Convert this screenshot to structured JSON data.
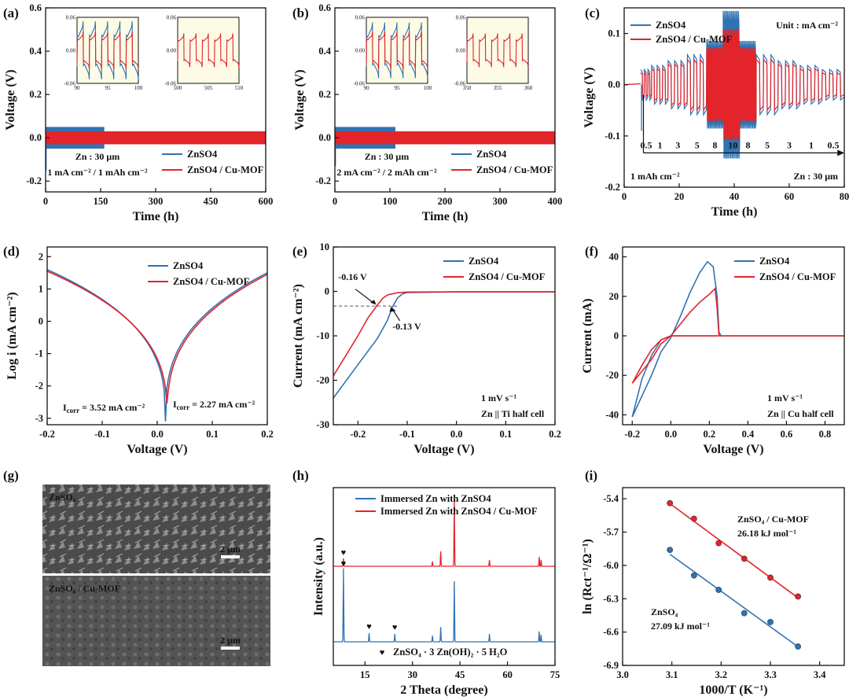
{
  "colors": {
    "blue": "#2f73b3",
    "red": "#e3242b",
    "axis": "#111111",
    "inset_bg": "#fdfbe6",
    "sem_bg": "#555555"
  },
  "chart_data": [
    {
      "id": "a",
      "panel_label": "(a)",
      "type": "line",
      "xlabel": "Time (h)",
      "ylabel": "Voltage (V)",
      "xlim": [
        0,
        600
      ],
      "ylim": [
        -0.25,
        0.6
      ],
      "xticks": [
        0,
        150,
        300,
        450,
        600
      ],
      "yticks": [
        -0.2,
        0.0,
        0.2,
        0.4,
        0.6
      ],
      "ytick_labels": [
        "-0.2",
        "0.0",
        "0.2",
        "0.4",
        "0.6"
      ],
      "legend": [
        "ZnSO4",
        "ZnSO4 / Cu-MOF"
      ],
      "series": [
        {
          "name": "ZnSO4",
          "color": "#2f73b3",
          "x_range": [
            0,
            160
          ],
          "amplitude": [
            0.05,
            0.06
          ],
          "spike": -0.15
        },
        {
          "name": "ZnSO4 / Cu-MOF",
          "color": "#e3242b",
          "x_range": [
            0,
            600
          ],
          "amplitude": [
            0.03,
            0.03
          ]
        }
      ],
      "annotations": [
        "Zn : 30 μm",
        "1 mA cm⁻² / 1 mAh cm⁻²"
      ],
      "insets": [
        {
          "xlim": [
            90,
            100
          ],
          "xticks": [
            90,
            95,
            100
          ],
          "ylim": [
            -0.06,
            0.06
          ],
          "ytick_labels": [
            "-0.06",
            "0.00",
            "0.06"
          ],
          "series": [
            "ZnSO4",
            "ZnSO4 / Cu-MOF"
          ],
          "cycles": 5,
          "amp_red": 0.038,
          "amp_blue": 0.05
        },
        {
          "xlim": [
            500,
            510
          ],
          "xticks": [
            500,
            505,
            510
          ],
          "ylim": [
            -0.06,
            0.06
          ],
          "ytick_labels": [
            "-0.06",
            "0.00",
            "0.06"
          ],
          "series": [
            "ZnSO4 / Cu-MOF"
          ],
          "cycles": 5,
          "amp_red": 0.034
        }
      ]
    },
    {
      "id": "b",
      "panel_label": "(b)",
      "type": "line",
      "xlabel": "Time (h)",
      "ylabel": "Voltage (V)",
      "xlim": [
        0,
        400
      ],
      "ylim": [
        -0.25,
        0.6
      ],
      "xticks": [
        0,
        100,
        200,
        300,
        400
      ],
      "yticks": [
        -0.2,
        0.0,
        0.2,
        0.4,
        0.6
      ],
      "ytick_labels": [
        "-0.2",
        "0.0",
        "0.2",
        "0.4",
        "0.6"
      ],
      "legend": [
        "ZnSO4",
        "ZnSO4 / Cu-MOF"
      ],
      "series": [
        {
          "name": "ZnSO4",
          "color": "#2f73b3",
          "x_range": [
            0,
            110
          ],
          "amplitude": [
            0.05,
            0.04
          ],
          "spike": -0.13
        },
        {
          "name": "ZnSO4 / Cu-MOF",
          "color": "#e3242b",
          "x_range": [
            0,
            400
          ],
          "amplitude": [
            0.03,
            0.03
          ]
        }
      ],
      "annotations": [
        "Zn : 30 μm",
        "2 mA cm⁻² / 2 mAh cm⁻²"
      ],
      "insets": [
        {
          "xlim": [
            90,
            100
          ],
          "xticks": [
            90,
            95,
            100
          ],
          "ylim": [
            -0.06,
            0.06
          ],
          "ytick_labels": [
            "-0.06",
            "0.00",
            "0.06"
          ],
          "series": [
            "ZnSO4",
            "ZnSO4 / Cu-MOF"
          ],
          "cycles": 5,
          "amp_red": 0.038,
          "amp_blue": 0.048
        },
        {
          "xlim": [
            350,
            360
          ],
          "xticks": [
            350,
            355,
            360
          ],
          "ylim": [
            -0.06,
            0.06
          ],
          "ytick_labels": [
            "-0.06",
            "0.00",
            "0.06"
          ],
          "series": [
            "ZnSO4 / Cu-MOF"
          ],
          "cycles": 5,
          "amp_red": 0.034
        }
      ]
    },
    {
      "id": "c",
      "panel_label": "(c)",
      "type": "line",
      "xlabel": "Time (h)",
      "ylabel": "Voltage (V)",
      "xlim": [
        0,
        80
      ],
      "ylim": [
        -0.2,
        0.15
      ],
      "xticks": [
        0,
        20,
        40,
        60,
        80
      ],
      "yticks": [
        -0.2,
        -0.1,
        0.0,
        0.1
      ],
      "ytick_labels": [
        "-0.2",
        "-0.1",
        "0.0",
        "0.1"
      ],
      "legend": [
        "ZnSO4",
        "ZnSO4 / Cu-MOF"
      ],
      "current_steps": [
        "0.5",
        "1",
        "3",
        "5",
        "8",
        "10",
        "8",
        "5",
        "3",
        "1",
        "0.5"
      ],
      "series": [
        {
          "name": "ZnSO4",
          "color": "#2f73b3",
          "peak_voltage": 0.16
        },
        {
          "name": "ZnSO4 / Cu-MOF",
          "color": "#e3242b",
          "peak_voltage": 0.12
        }
      ],
      "annotations": [
        "Unit : mA cm⁻²",
        "1 mAh cm⁻²",
        "Zn : 30 μm"
      ]
    },
    {
      "id": "d",
      "panel_label": "(d)",
      "type": "line",
      "xlabel": "Voltage (V)",
      "ylabel": "Log i (mA cm⁻²)",
      "xlim": [
        -0.2,
        0.2
      ],
      "ylim": [
        -3.2,
        2.3
      ],
      "xticks": [
        -0.2,
        -0.1,
        0.0,
        0.1,
        0.2
      ],
      "yticks": [
        -3,
        -2,
        -1,
        0,
        1,
        2
      ],
      "xtick_labels": [
        "-0.2",
        "-0.1",
        "0.0",
        "0.1",
        "0.2"
      ],
      "ytick_labels": [
        "-3",
        "-2",
        "-1",
        "0",
        "1",
        "2"
      ],
      "legend": [
        "ZnSO4",
        "ZnSO4 / Cu-MOF"
      ],
      "series": [
        {
          "name": "ZnSO4",
          "color": "#2f73b3",
          "x_min": 0.015,
          "left_end": 1.6,
          "right_end": 1.5
        },
        {
          "name": "ZnSO4 / Cu-MOF",
          "color": "#e3242b",
          "x_min": 0.018,
          "left_end": 1.55,
          "right_end": 1.45
        }
      ],
      "annotations": [
        "I",
        "corr",
        " = 3.52 mA cm⁻²",
        "I",
        "corr",
        " = 2.27 mA cm⁻²"
      ]
    },
    {
      "id": "e",
      "panel_label": "(e)",
      "type": "line",
      "xlabel": "Voltage (V)",
      "ylabel": "Current (mA cm⁻²)",
      "xlim": [
        -0.25,
        0.2
      ],
      "ylim": [
        -30,
        10
      ],
      "xticks": [
        -0.2,
        -0.1,
        0.0,
        0.1,
        0.2
      ],
      "yticks": [
        -30,
        -20,
        -10,
        0,
        10
      ],
      "xtick_labels": [
        "-0.2",
        "-0.1",
        "0.0",
        "0.1",
        "0.2"
      ],
      "legend": [
        "ZnSO4",
        "ZnSO4 / Cu-MOF"
      ],
      "series": [
        {
          "name": "ZnSO4",
          "color": "#2f73b3",
          "x": [
            -0.25,
            -0.2,
            -0.16,
            -0.14,
            -0.13,
            -0.12,
            -0.11,
            -0.1,
            0.0,
            0.2
          ],
          "y": [
            -24,
            -16.5,
            -10.5,
            -6.5,
            -3.5,
            -1.5,
            -0.6,
            -0.25,
            -0.1,
            -0.1
          ]
        },
        {
          "name": "ZnSO4 / Cu-MOF",
          "color": "#e3242b",
          "x": [
            -0.25,
            -0.2,
            -0.18,
            -0.16,
            -0.15,
            -0.14,
            -0.12,
            -0.1,
            0.0,
            0.2
          ],
          "y": [
            -19,
            -10,
            -6,
            -3,
            -1.6,
            -0.8,
            -0.3,
            -0.15,
            -0.1,
            -0.1
          ]
        }
      ],
      "annotations": [
        "-0.16 V",
        "-0.13 V",
        "1 mV s⁻¹",
        "Zn || Ti half cell"
      ]
    },
    {
      "id": "f",
      "panel_label": "(f)",
      "type": "line",
      "xlabel": "Voltage (V)",
      "ylabel": "Current (mA)",
      "xlim": [
        -0.25,
        0.9
      ],
      "ylim": [
        -45,
        45
      ],
      "xticks": [
        -0.2,
        0.0,
        0.2,
        0.4,
        0.6,
        0.8
      ],
      "yticks": [
        -40,
        -20,
        0,
        20,
        40
      ],
      "xtick_labels": [
        "-0.2",
        "0.0",
        "0.2",
        "0.4",
        "0.6",
        "0.8"
      ],
      "legend": [
        "ZnSO4",
        "ZnSO4 / Cu-MOF"
      ],
      "series": [
        {
          "name": "ZnSO4",
          "color": "#2f73b3",
          "fwd_x": [
            -0.2,
            -0.1,
            -0.05,
            0.0,
            0.05,
            0.1,
            0.15,
            0.19,
            0.22,
            0.24,
            0.25,
            0.26,
            0.3,
            0.9
          ],
          "fwd_y": [
            -41,
            -20,
            -8,
            -1,
            10,
            22,
            32,
            37.5,
            35,
            20,
            2,
            0,
            0,
            0
          ],
          "rev_x": [
            0.24,
            0.2,
            0.1,
            0.0,
            -0.05,
            -0.1,
            -0.15,
            -0.2
          ],
          "rev_y": [
            0,
            0,
            0,
            0,
            -2,
            -10,
            -22,
            -41
          ]
        },
        {
          "name": "ZnSO4 / Cu-MOF",
          "color": "#e3242b",
          "fwd_x": [
            -0.2,
            -0.1,
            -0.05,
            0.0,
            0.05,
            0.1,
            0.15,
            0.2,
            0.23,
            0.24,
            0.25,
            0.9
          ],
          "fwd_y": [
            -24,
            -12,
            -4,
            0,
            6,
            12,
            17,
            21,
            24,
            14,
            0,
            0
          ],
          "rev_x": [
            0.25,
            0.1,
            0.0,
            -0.05,
            -0.1,
            -0.15,
            -0.2
          ],
          "rev_y": [
            0,
            0,
            0,
            -2,
            -7,
            -15,
            -24
          ]
        }
      ],
      "annotations": [
        "1 mV s⁻¹",
        "Zn || Cu half cell"
      ]
    },
    {
      "id": "h",
      "panel_label": "(h)",
      "type": "line",
      "xlabel": "2 Theta (degree)",
      "ylabel": "Intensity (a.u.)",
      "xlim": [
        5,
        75
      ],
      "xticks": [
        15,
        30,
        45,
        60,
        75
      ],
      "legend": [
        "Immersed Zn with ZnSO4",
        "Immersed Zn with ZnSO4 / Cu-MOF"
      ],
      "series": [
        {
          "name": "Immersed Zn with ZnSO4",
          "color": "#2f73b3",
          "peaks": [
            [
              8.2,
              0.85
            ],
            [
              16.3,
              0.1
            ],
            [
              24.4,
              0.09
            ],
            [
              36.3,
              0.07
            ],
            [
              38.9,
              0.17
            ],
            [
              43.2,
              0.7
            ],
            [
              54.3,
              0.09
            ],
            [
              70.0,
              0.12
            ],
            [
              70.6,
              0.08
            ]
          ]
        },
        {
          "name": "Immersed Zn with ZnSO4 / Cu-MOF",
          "color": "#e3242b",
          "peaks": [
            [
              8.2,
              0.1
            ],
            [
              36.3,
              0.06
            ],
            [
              38.9,
              0.19
            ],
            [
              43.2,
              0.85
            ],
            [
              54.3,
              0.08
            ],
            [
              70.0,
              0.12
            ],
            [
              70.6,
              0.08
            ]
          ]
        }
      ],
      "marker_label": "ZnSO₄ · 3 Zn(OH)₂ · 5 H₂O"
    },
    {
      "id": "i",
      "panel_label": "(i)",
      "type": "scatter",
      "xlabel": "1000/T (K⁻¹)",
      "ylabel": "ln (Rct⁻¹/Ω⁻¹)",
      "xlim": [
        3.0,
        3.45
      ],
      "ylim": [
        -6.9,
        -5.3
      ],
      "xticks": [
        3.0,
        3.1,
        3.2,
        3.3,
        3.4
      ],
      "yticks": [
        -6.9,
        -6.6,
        -6.3,
        -6.0,
        -5.7,
        -5.4
      ],
      "xtick_labels": [
        "3.0",
        "3.1",
        "3.2",
        "3.3",
        "3.4"
      ],
      "ytick_labels": [
        "-6.9",
        "-6.6",
        "-6.3",
        "-6.0",
        "-5.7",
        "-5.4"
      ],
      "series": [
        {
          "name": "ZnSO4 / Cu-MOF",
          "color": "#e3242b",
          "x": [
            3.096,
            3.145,
            3.195,
            3.247,
            3.3,
            3.356
          ],
          "y": [
            -5.44,
            -5.58,
            -5.8,
            -5.94,
            -6.11,
            -6.28
          ]
        },
        {
          "name": "ZnSO4",
          "color": "#2f73b3",
          "x": [
            3.096,
            3.145,
            3.195,
            3.247,
            3.3,
            3.356
          ],
          "y": [
            -5.86,
            -6.09,
            -6.22,
            -6.43,
            -6.51,
            -6.73
          ]
        }
      ],
      "annotations": [
        "ZnSO₄ / Cu-MOF",
        "26.18 kJ mol⁻¹",
        "ZnSO₄",
        "27.09 kJ mol⁻¹"
      ]
    }
  ],
  "sem": {
    "panel_label": "(g)",
    "top_label": "ZnSO₄",
    "bottom_label": "ZnSO₄ / Cu-MOF",
    "scale_bar": "2 μm"
  }
}
